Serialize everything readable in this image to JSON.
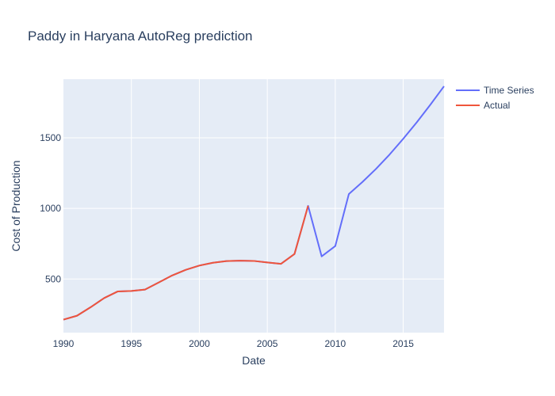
{
  "chart_data": {
    "type": "line",
    "title": "Paddy in Haryana AutoReg prediction",
    "xlabel": "Date",
    "ylabel": "Cost of Production",
    "xlim": [
      1990,
      2018
    ],
    "ylim": [
      120,
      1915
    ],
    "x_ticks": [
      1990,
      1995,
      2000,
      2005,
      2010,
      2015
    ],
    "y_ticks": [
      500,
      1000,
      1500
    ],
    "grid": true,
    "legend_position": "top-right",
    "colors": {
      "plot_background": "#e5ecf6",
      "grid": "#ffffff",
      "text": "#2a3f5f"
    },
    "series": [
      {
        "name": "Time Series",
        "color": "#636efa",
        "x": [
          1990,
          1991,
          1992,
          1993,
          1994,
          1995,
          1996,
          1997,
          1998,
          1999,
          2000,
          2001,
          2002,
          2003,
          2004,
          2005,
          2006,
          2007,
          2008,
          2009,
          2010,
          2011,
          2012,
          2013,
          2014,
          2015,
          2016,
          2017,
          2018
        ],
        "values": [
          212,
          240,
          300,
          365,
          412,
          415,
          425,
          475,
          525,
          565,
          595,
          615,
          627,
          630,
          628,
          617,
          607,
          677,
          1018,
          660,
          733,
          1102,
          1187,
          1280,
          1382,
          1493,
          1610,
          1735,
          1865
        ]
      },
      {
        "name": "Actual",
        "color": "#ef553b",
        "x": [
          1990,
          1991,
          1992,
          1993,
          1994,
          1995,
          1996,
          1997,
          1998,
          1999,
          2000,
          2001,
          2002,
          2003,
          2004,
          2005,
          2006,
          2007,
          2008
        ],
        "values": [
          212,
          240,
          300,
          365,
          412,
          415,
          425,
          475,
          525,
          565,
          595,
          615,
          627,
          630,
          628,
          617,
          607,
          677,
          1018
        ]
      }
    ]
  }
}
